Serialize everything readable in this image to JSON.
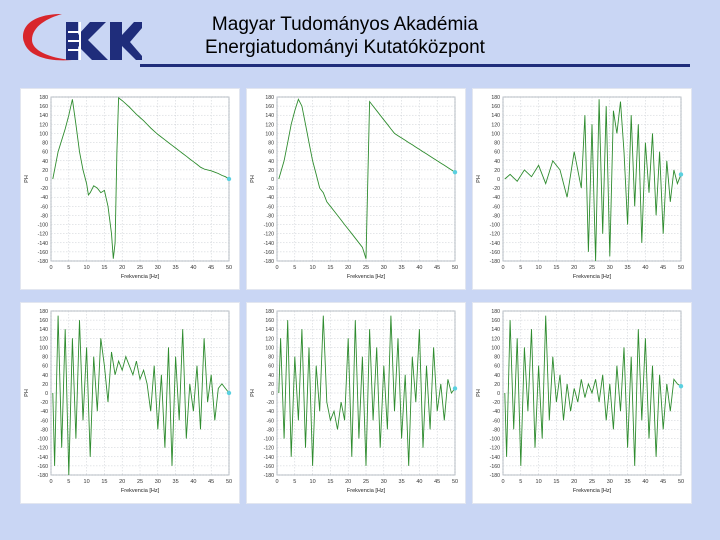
{
  "header": {
    "title_line1": "Magyar Tudományos Akadémia",
    "title_line2": "Energiatudományi Kutatóközpont",
    "logo_text": "EK"
  },
  "colors": {
    "background": "#c9d6f4",
    "rule": "#1f2d7b",
    "trace": "#2f8c2f",
    "marker": "#5ad0e0",
    "logo_red": "#d8262c",
    "logo_blue": "#1f2d7b"
  },
  "chart_data": [
    {
      "type": "line",
      "xlabel": "Frekvencia [Hz]",
      "ylabel": "PH",
      "xlim": [
        0,
        50
      ],
      "ylim": [
        -180,
        180
      ],
      "xticks": [
        "0",
        "5",
        "10",
        "15",
        "20",
        "25",
        "30",
        "35",
        "40",
        "45",
        "50"
      ],
      "yticks": [
        "180",
        "160",
        "140",
        "120",
        "100",
        "80",
        "60",
        "40",
        "20",
        "0",
        "-20",
        "-40",
        "-60",
        "-80",
        "-100",
        "-120",
        "-140",
        "-160",
        "-180"
      ],
      "x": [
        0.5,
        2,
        4,
        5,
        6,
        7,
        8,
        9,
        10,
        10.5,
        11,
        12,
        13,
        14,
        15,
        16,
        17,
        17.5,
        18,
        18.5,
        19,
        20,
        21,
        22,
        23,
        24,
        25,
        26,
        27,
        28,
        29,
        30,
        31,
        32,
        33,
        34,
        35,
        36,
        37,
        38,
        39,
        40,
        41,
        42,
        43,
        44,
        45,
        46,
        47,
        48,
        49,
        50
      ],
      "y": [
        0,
        60,
        110,
        140,
        175,
        120,
        60,
        20,
        -10,
        -35,
        -30,
        -15,
        -20,
        -30,
        -25,
        -60,
        -120,
        -175,
        -140,
        60,
        178,
        172,
        165,
        158,
        150,
        142,
        135,
        128,
        120,
        112,
        105,
        98,
        92,
        86,
        80,
        74,
        68,
        62,
        56,
        50,
        44,
        38,
        32,
        26,
        22,
        20,
        18,
        15,
        12,
        8,
        5,
        0
      ]
    },
    {
      "type": "line",
      "xlabel": "Frekvencia [Hz]",
      "ylabel": "PH",
      "xlim": [
        0,
        50
      ],
      "ylim": [
        -180,
        180
      ],
      "xticks": [
        "0",
        "5",
        "10",
        "15",
        "20",
        "25",
        "30",
        "35",
        "40",
        "45",
        "50"
      ],
      "yticks": [
        "180",
        "160",
        "140",
        "120",
        "100",
        "80",
        "60",
        "40",
        "20",
        "0",
        "-20",
        "-40",
        "-60",
        "-80",
        "-100",
        "-120",
        "-140",
        "-160",
        "-180"
      ],
      "x": [
        0.5,
        2,
        3,
        4,
        5,
        6,
        7,
        8,
        9,
        10,
        11,
        12,
        13,
        14,
        15,
        16,
        17,
        18,
        19,
        20,
        21,
        22,
        23,
        24,
        25,
        26,
        27,
        28,
        29,
        30,
        31,
        32,
        33,
        34,
        35,
        36,
        37,
        38,
        39,
        40,
        41,
        42,
        43,
        44,
        45,
        46,
        47,
        48,
        49,
        50
      ],
      "y": [
        0,
        40,
        80,
        120,
        150,
        175,
        160,
        120,
        80,
        40,
        10,
        -20,
        -30,
        -50,
        -60,
        -70,
        -80,
        -90,
        -100,
        -110,
        -120,
        -130,
        -140,
        -150,
        -175,
        170,
        160,
        150,
        140,
        130,
        120,
        110,
        100,
        95,
        90,
        85,
        80,
        75,
        70,
        65,
        60,
        55,
        50,
        45,
        40,
        35,
        30,
        25,
        20,
        15
      ]
    },
    {
      "type": "line",
      "xlabel": "Frekvencia [Hz]",
      "ylabel": "PH",
      "xlim": [
        0,
        50
      ],
      "ylim": [
        -180,
        180
      ],
      "xticks": [
        "0",
        "5",
        "10",
        "15",
        "20",
        "25",
        "30",
        "35",
        "40",
        "45",
        "50"
      ],
      "yticks": [
        "180",
        "160",
        "140",
        "120",
        "100",
        "80",
        "60",
        "40",
        "20",
        "0",
        "-20",
        "-40",
        "-60",
        "-80",
        "-100",
        "-120",
        "-140",
        "-160",
        "-180"
      ],
      "x": [
        0.5,
        2,
        4,
        6,
        8,
        10,
        12,
        14,
        16,
        18,
        20,
        22,
        23,
        24,
        25,
        26,
        27,
        28,
        29,
        30,
        31,
        32,
        33,
        34,
        35,
        36,
        37,
        38,
        39,
        40,
        41,
        42,
        43,
        44,
        45,
        46,
        47,
        48,
        49,
        50
      ],
      "y": [
        0,
        10,
        -5,
        20,
        5,
        30,
        -10,
        40,
        20,
        -40,
        60,
        -20,
        140,
        -160,
        120,
        -180,
        175,
        -120,
        160,
        -170,
        150,
        100,
        170,
        60,
        -100,
        140,
        -60,
        120,
        -140,
        80,
        -30,
        100,
        -80,
        60,
        -120,
        40,
        -50,
        20,
        -10,
        10
      ]
    },
    {
      "type": "line",
      "xlabel": "Frekvencia [Hz]",
      "ylabel": "PH",
      "xlim": [
        0,
        50
      ],
      "ylim": [
        -180,
        180
      ],
      "xticks": [
        "0",
        "5",
        "10",
        "15",
        "20",
        "25",
        "30",
        "35",
        "40",
        "45",
        "50"
      ],
      "yticks": [
        "180",
        "160",
        "140",
        "120",
        "100",
        "80",
        "60",
        "40",
        "20",
        "0",
        "-20",
        "-40",
        "-60",
        "-80",
        "-100",
        "-120",
        "-140",
        "-160",
        "-180"
      ],
      "x": [
        0.5,
        1,
        2,
        3,
        4,
        5,
        6,
        7,
        8,
        9,
        10,
        11,
        12,
        13,
        14,
        15,
        16,
        17,
        18,
        19,
        20,
        21,
        22,
        23,
        24,
        25,
        26,
        27,
        28,
        29,
        30,
        31,
        32,
        33,
        34,
        35,
        36,
        37,
        38,
        39,
        40,
        41,
        42,
        43,
        44,
        45,
        46,
        47,
        48,
        49,
        50
      ],
      "y": [
        0,
        -160,
        170,
        -120,
        140,
        -180,
        120,
        -100,
        160,
        -60,
        100,
        -140,
        80,
        -40,
        120,
        60,
        -20,
        90,
        40,
        70,
        50,
        80,
        60,
        40,
        70,
        30,
        50,
        20,
        -40,
        60,
        -80,
        40,
        -120,
        100,
        -160,
        80,
        -60,
        140,
        -100,
        20,
        -40,
        60,
        -80,
        120,
        -20,
        40,
        -60,
        10,
        20,
        10,
        0
      ]
    },
    {
      "type": "line",
      "xlabel": "Frekvencia [Hz]",
      "ylabel": "PH",
      "xlim": [
        0,
        50
      ],
      "ylim": [
        -180,
        180
      ],
      "xticks": [
        "0",
        "5",
        "10",
        "15",
        "20",
        "25",
        "30",
        "35",
        "40",
        "45",
        "50"
      ],
      "yticks": [
        "180",
        "160",
        "140",
        "120",
        "100",
        "80",
        "60",
        "40",
        "20",
        "0",
        "-20",
        "-40",
        "-60",
        "-80",
        "-100",
        "-120",
        "-140",
        "-160",
        "-180"
      ],
      "x": [
        0.5,
        1,
        2,
        3,
        4,
        5,
        6,
        7,
        8,
        9,
        10,
        11,
        12,
        13,
        14,
        15,
        16,
        17,
        18,
        19,
        20,
        21,
        22,
        23,
        24,
        25,
        26,
        27,
        28,
        29,
        30,
        31,
        32,
        33,
        34,
        35,
        36,
        37,
        38,
        39,
        40,
        41,
        42,
        43,
        44,
        45,
        46,
        47,
        48,
        49,
        50
      ],
      "y": [
        0,
        120,
        -100,
        160,
        -140,
        80,
        -60,
        140,
        -120,
        100,
        -160,
        60,
        -40,
        170,
        -20,
        -60,
        -40,
        -80,
        -20,
        -60,
        120,
        -140,
        160,
        -100,
        80,
        -160,
        140,
        -60,
        100,
        -120,
        60,
        -80,
        170,
        -40,
        120,
        -100,
        40,
        -160,
        80,
        -20,
        140,
        -120,
        60,
        -80,
        100,
        -40,
        20,
        -60,
        30,
        0,
        10
      ]
    },
    {
      "type": "line",
      "xlabel": "Frekvencia [Hz]",
      "ylabel": "PH",
      "xlim": [
        0,
        50
      ],
      "ylim": [
        -180,
        180
      ],
      "xticks": [
        "0",
        "5",
        "10",
        "15",
        "20",
        "25",
        "30",
        "35",
        "40",
        "45",
        "50"
      ],
      "yticks": [
        "180",
        "160",
        "140",
        "120",
        "100",
        "80",
        "60",
        "40",
        "20",
        "0",
        "-20",
        "-40",
        "-60",
        "-80",
        "-100",
        "-120",
        "-140",
        "-160",
        "-180"
      ],
      "x": [
        0.5,
        1,
        2,
        3,
        4,
        5,
        6,
        7,
        8,
        9,
        10,
        11,
        12,
        13,
        14,
        15,
        16,
        17,
        18,
        19,
        20,
        21,
        22,
        23,
        24,
        25,
        26,
        27,
        28,
        29,
        30,
        31,
        32,
        33,
        34,
        35,
        36,
        37,
        38,
        39,
        40,
        41,
        42,
        43,
        44,
        45,
        46,
        47,
        48,
        49,
        50
      ],
      "y": [
        0,
        -140,
        160,
        -80,
        120,
        -160,
        100,
        -40,
        140,
        -120,
        60,
        -100,
        170,
        -60,
        80,
        -20,
        40,
        -60,
        20,
        -40,
        10,
        -20,
        30,
        -10,
        20,
        0,
        30,
        -20,
        40,
        -60,
        20,
        -80,
        60,
        -40,
        100,
        -120,
        80,
        -160,
        140,
        -60,
        120,
        -100,
        60,
        -140,
        40,
        -80,
        20,
        -40,
        30,
        20,
        15
      ]
    }
  ]
}
